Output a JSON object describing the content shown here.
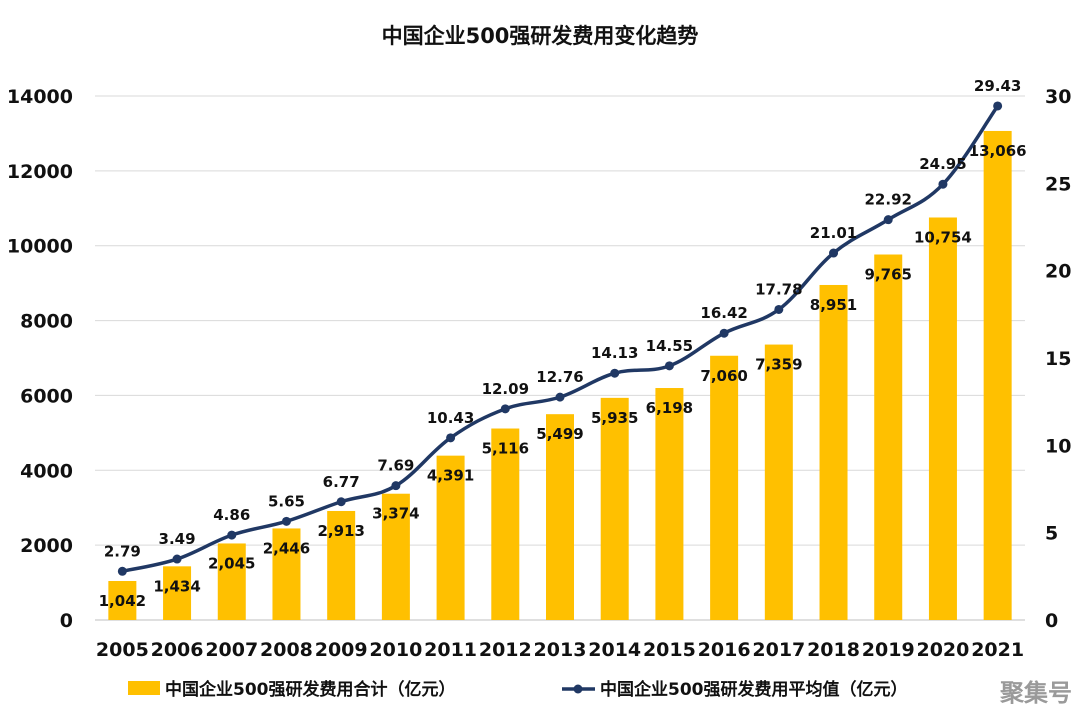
{
  "chart_data": {
    "type": "bar",
    "title": "中国企业500强研发费用变化趋势",
    "categories": [
      "2005",
      "2006",
      "2007",
      "2008",
      "2009",
      "2010",
      "2011",
      "2012",
      "2013",
      "2014",
      "2015",
      "2016",
      "2017",
      "2018",
      "2019",
      "2020",
      "2021"
    ],
    "series": [
      {
        "name": "中国企业500强研发费用合计（亿元）",
        "type": "bar",
        "axis": "left",
        "color": "#FFC000",
        "values": [
          1042,
          1434,
          2045,
          2446,
          2913,
          3374,
          4391,
          5116,
          5499,
          5935,
          6198,
          7060,
          7359,
          8951,
          9765,
          10754,
          13066
        ],
        "labels": [
          "1,042",
          "1,434",
          "2,045",
          "2,446",
          "2,913",
          "3,374",
          "4,391",
          "5,116",
          "5,499",
          "5,935",
          "6,198",
          "7,060",
          "7,359",
          "8,951",
          "9,765",
          "10,754",
          "13,066"
        ]
      },
      {
        "name": "中国企业500强研发费用平均值（亿元）",
        "type": "line",
        "axis": "right",
        "color": "#203864",
        "values": [
          2.79,
          3.49,
          4.86,
          5.65,
          6.77,
          7.69,
          10.43,
          12.09,
          12.76,
          14.13,
          14.55,
          16.42,
          17.78,
          21.01,
          22.92,
          24.95,
          29.43
        ],
        "labels": [
          "2.79",
          "3.49",
          "4.86",
          "5.65",
          "6.77",
          "7.69",
          "10.43",
          "12.09",
          "12.76",
          "14.13",
          "14.55",
          "16.42",
          "17.78",
          "21.01",
          "22.92",
          "24.95",
          "29.43"
        ]
      }
    ],
    "y_left": {
      "range": [
        0,
        14000
      ],
      "ticks": [
        "0",
        "2000",
        "4000",
        "6000",
        "8000",
        "10000",
        "12000",
        "14000"
      ]
    },
    "y_right": {
      "range": [
        0,
        30
      ],
      "ticks": [
        "0",
        "5",
        "10",
        "15",
        "20",
        "25",
        "30"
      ]
    },
    "grid": true,
    "legend_position": "bottom"
  },
  "watermark": "聚集号"
}
